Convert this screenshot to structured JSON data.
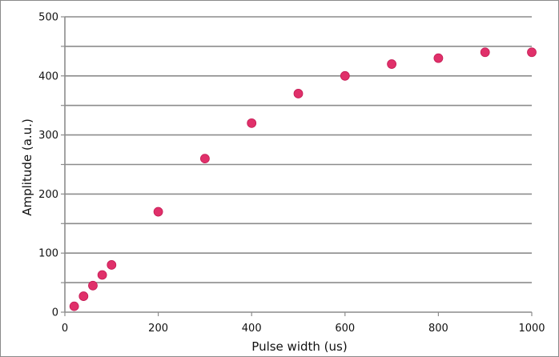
{
  "chart_data": {
    "type": "scatter",
    "title": "",
    "xlabel": "Pulse width (us)",
    "ylabel": "Amplitude (a.u.)",
    "xlim": [
      0,
      1000
    ],
    "ylim": [
      0,
      500
    ],
    "x_ticks": [
      0,
      200,
      400,
      600,
      800,
      1000
    ],
    "y_ticks": [
      0,
      100,
      200,
      300,
      400,
      500
    ],
    "y_gridlines": [
      50,
      100,
      150,
      200,
      250,
      300,
      350,
      400,
      450,
      500
    ],
    "grid": "horizontal",
    "legend": "none",
    "marker_color": "#e0306a",
    "series": [
      {
        "x": [
          20,
          40,
          60,
          80,
          100,
          200,
          300,
          400,
          500,
          600,
          700,
          800,
          900,
          1000
        ],
        "y": [
          10,
          27,
          45,
          63,
          80,
          170,
          260,
          320,
          370,
          400,
          420,
          430,
          440,
          440
        ]
      }
    ]
  }
}
